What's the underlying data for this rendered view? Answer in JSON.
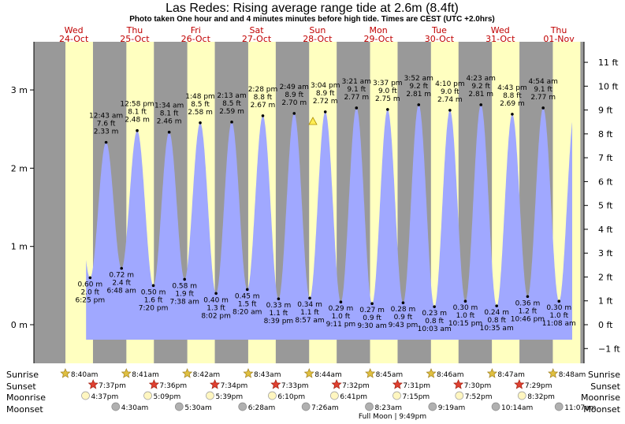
{
  "title": "Las Redes: Rising average range tide at 2.6m (8.4ft)",
  "subtitle": "Photo taken One hour and and 4 minutes minutes before high tide. Times are CEST (UTC +2.0hrs)",
  "colors": {
    "day": "#ffffc0",
    "night": "#999999",
    "tide": "#a0a8ff",
    "day_label": "#c00000",
    "marker": "#ffee55"
  },
  "chart_data": {
    "type": "area",
    "title": "Las Redes: Rising average range tide at 2.6m (8.4ft)",
    "ylabel_left_unit": "m",
    "ylabel_right_unit": "ft",
    "ylim": [
      -0.55,
      3.55
    ],
    "yticks_m": [
      {
        "v": 0,
        "label": "0 m"
      },
      {
        "v": 1,
        "label": "1 m"
      },
      {
        "v": 2,
        "label": "2 m"
      },
      {
        "v": 3,
        "label": "3 m"
      }
    ],
    "yticks_ft": [
      "−1 ft",
      "0 ft",
      "1 ft",
      "2 ft",
      "3 ft",
      "4 ft",
      "5 ft",
      "6 ft",
      "7 ft",
      "8 ft",
      "9 ft",
      "10 ft",
      "11 ft"
    ],
    "days": [
      {
        "dow": "Wed",
        "date": "24-Oct"
      },
      {
        "dow": "Thu",
        "date": "25-Oct"
      },
      {
        "dow": "Fri",
        "date": "26-Oct"
      },
      {
        "dow": "Sat",
        "date": "27-Oct"
      },
      {
        "dow": "Sun",
        "date": "28-Oct"
      },
      {
        "dow": "Mon",
        "date": "29-Oct"
      },
      {
        "dow": "Tue",
        "date": "30-Oct"
      },
      {
        "dow": "Wed",
        "date": "31-Oct"
      },
      {
        "dow": "Thu",
        "date": "01-Nov"
      }
    ],
    "tides": [
      {
        "kind": "low",
        "m": "0.60 m",
        "ft": "2.0 ft",
        "time": "6:25 pm",
        "v": 0.6
      },
      {
        "kind": "high",
        "m": "2.33 m",
        "ft": "7.6 ft",
        "time": "12:43 am",
        "v": 2.33
      },
      {
        "kind": "low",
        "m": "0.72 m",
        "ft": "2.4 ft",
        "time": "6:48 am",
        "v": 0.72
      },
      {
        "kind": "high",
        "m": "2.48 m",
        "ft": "8.1 ft",
        "time": "12:58 pm",
        "v": 2.48
      },
      {
        "kind": "low",
        "m": "0.50 m",
        "ft": "1.6 ft",
        "time": "7:20 pm",
        "v": 0.5
      },
      {
        "kind": "high",
        "m": "2.46 m",
        "ft": "8.1 ft",
        "time": "1:34 am",
        "v": 2.46
      },
      {
        "kind": "low",
        "m": "0.58 m",
        "ft": "1.9 ft",
        "time": "7:38 am",
        "v": 0.58
      },
      {
        "kind": "high",
        "m": "2.58 m",
        "ft": "8.5 ft",
        "time": "1:48 pm",
        "v": 2.58
      },
      {
        "kind": "low",
        "m": "0.40 m",
        "ft": "1.3 ft",
        "time": "8:02 pm",
        "v": 0.4
      },
      {
        "kind": "high",
        "m": "2.59 m",
        "ft": "8.5 ft",
        "time": "2:13 am",
        "v": 2.59
      },
      {
        "kind": "low",
        "m": "0.45 m",
        "ft": "1.5 ft",
        "time": "8:20 am",
        "v": 0.45
      },
      {
        "kind": "high",
        "m": "2.67 m",
        "ft": "8.8 ft",
        "time": "2:28 pm",
        "v": 2.67
      },
      {
        "kind": "low",
        "m": "0.33 m",
        "ft": "1.1 ft",
        "time": "8:39 pm",
        "v": 0.33
      },
      {
        "kind": "high",
        "m": "2.70 m",
        "ft": "8.9 ft",
        "time": "2:49 am",
        "v": 2.7
      },
      {
        "kind": "low",
        "m": "0.34 m",
        "ft": "1.1 ft",
        "time": "8:57 am",
        "v": 0.34
      },
      {
        "kind": "high",
        "m": "2.72 m",
        "ft": "8.9 ft",
        "time": "3:04 pm",
        "v": 2.72
      },
      {
        "kind": "low",
        "m": "0.29 m",
        "ft": "1.0 ft",
        "time": "9:11 pm",
        "v": 0.29
      },
      {
        "kind": "high",
        "m": "2.77 m",
        "ft": "9.1 ft",
        "time": "3:21 am",
        "v": 2.77
      },
      {
        "kind": "low",
        "m": "0.27 m",
        "ft": "0.9 ft",
        "time": "9:30 am",
        "v": 0.27
      },
      {
        "kind": "high",
        "m": "2.75 m",
        "ft": "9.0 ft",
        "time": "3:37 pm",
        "v": 2.75
      },
      {
        "kind": "low",
        "m": "0.28 m",
        "ft": "0.9 ft",
        "time": "9:43 pm",
        "v": 0.28
      },
      {
        "kind": "high",
        "m": "2.81 m",
        "ft": "9.2 ft",
        "time": "3:52 am",
        "v": 2.81
      },
      {
        "kind": "low",
        "m": "0.23 m",
        "ft": "0.8 ft",
        "time": "10:03 am",
        "v": 0.23
      },
      {
        "kind": "high",
        "m": "2.74 m",
        "ft": "9.0 ft",
        "time": "4:10 pm",
        "v": 2.74
      },
      {
        "kind": "low",
        "m": "0.30 m",
        "ft": "1.0 ft",
        "time": "10:15 pm",
        "v": 0.3
      },
      {
        "kind": "high",
        "m": "2.81 m",
        "ft": "9.2 ft",
        "time": "4:23 am",
        "v": 2.81
      },
      {
        "kind": "low",
        "m": "0.24 m",
        "ft": "0.8 ft",
        "time": "10:35 am",
        "v": 0.24
      },
      {
        "kind": "high",
        "m": "2.69 m",
        "ft": "8.8 ft",
        "time": "4:43 pm",
        "v": 2.69
      },
      {
        "kind": "low",
        "m": "0.36 m",
        "ft": "1.2 ft",
        "time": "10:46 pm",
        "v": 0.36
      },
      {
        "kind": "high",
        "m": "2.77 m",
        "ft": "9.1 ft",
        "time": "4:54 am",
        "v": 2.77
      },
      {
        "kind": "low",
        "m": "0.30 m",
        "ft": "1.0 ft",
        "time": "11:08 am",
        "v": 0.3
      }
    ],
    "photo_marker_label": "2.6m (8.4ft)"
  },
  "legend": {
    "sunrise": "Sunrise",
    "sunset": "Sunset",
    "moonrise": "Moonrise",
    "moonset": "Moonset"
  },
  "sunrise": [
    "8:40am",
    "8:41am",
    "8:42am",
    "8:43am",
    "8:44am",
    "8:45am",
    "8:46am",
    "8:47am",
    "8:48am"
  ],
  "sunset": [
    "7:37pm",
    "7:36pm",
    "7:34pm",
    "7:33pm",
    "7:32pm",
    "7:31pm",
    "7:30pm",
    "7:29pm"
  ],
  "moonrise": [
    "4:37pm",
    "5:09pm",
    "5:39pm",
    "6:10pm",
    "6:41pm",
    "7:15pm",
    "7:52pm",
    "8:32pm"
  ],
  "moonset": [
    "4:30am",
    "5:30am",
    "6:28am",
    "7:26am",
    "8:23am",
    "9:19am",
    "10:14am",
    "11:07am"
  ],
  "full_moon": "Full Moon | 9:49pm"
}
